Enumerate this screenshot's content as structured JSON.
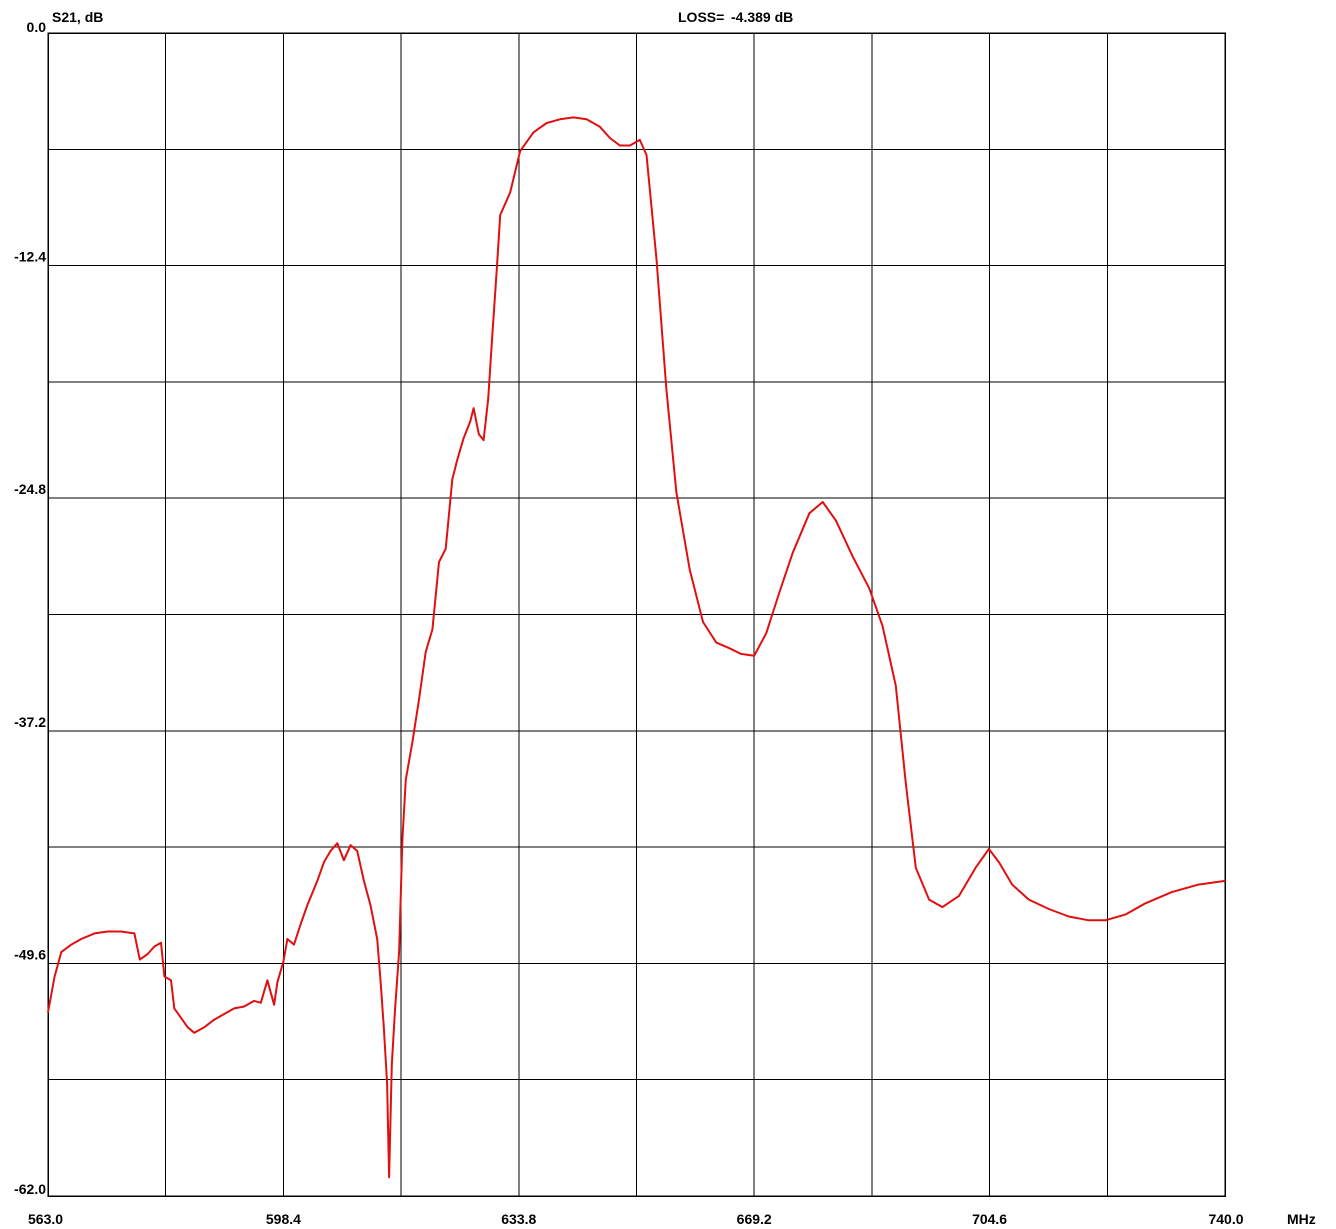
{
  "header": {
    "y_label": "S21, dB",
    "loss_label": "LOSS=",
    "loss_value": "-4.389 dB"
  },
  "chart_data": {
    "type": "line",
    "ylabel": "S21, dB",
    "xunit": "MHz",
    "xlim": [
      563.0,
      740.0
    ],
    "ylim": [
      -62.0,
      0.0
    ],
    "x_ticks": [
      "563.0",
      "598.4",
      "633.8",
      "669.2",
      "704.6",
      "740.0"
    ],
    "y_ticks": [
      "0.0",
      "-12.4",
      "-24.8",
      "-37.2",
      "-49.6",
      "-62.0"
    ],
    "x_grid_divisions": 10,
    "y_grid_divisions": 10,
    "grid": true,
    "series": [
      {
        "color": "#e01010",
        "points": [
          [
            563.0,
            -52.2
          ],
          [
            564.0,
            -50.3
          ],
          [
            565.0,
            -49.0
          ],
          [
            566.5,
            -48.6
          ],
          [
            568.0,
            -48.3
          ],
          [
            570.0,
            -48.0
          ],
          [
            572.0,
            -47.9
          ],
          [
            574.0,
            -47.9
          ],
          [
            576.0,
            -48.0
          ],
          [
            576.8,
            -49.4
          ],
          [
            578.0,
            -49.1
          ],
          [
            579.0,
            -48.7
          ],
          [
            580.0,
            -48.5
          ],
          [
            580.5,
            -50.3
          ],
          [
            581.5,
            -50.5
          ],
          [
            582.0,
            -52.0
          ],
          [
            583.0,
            -52.5
          ],
          [
            584.0,
            -53.0
          ],
          [
            585.0,
            -53.3
          ],
          [
            586.5,
            -53.0
          ],
          [
            588.0,
            -52.6
          ],
          [
            589.5,
            -52.3
          ],
          [
            591.0,
            -52.0
          ],
          [
            592.5,
            -51.9
          ],
          [
            594.0,
            -51.6
          ],
          [
            595.0,
            -51.7
          ],
          [
            596.0,
            -50.5
          ],
          [
            597.0,
            -51.8
          ],
          [
            597.5,
            -50.6
          ],
          [
            598.4,
            -49.5
          ],
          [
            599.0,
            -48.3
          ],
          [
            600.0,
            -48.6
          ],
          [
            601.0,
            -47.5
          ],
          [
            602.0,
            -46.5
          ],
          [
            603.5,
            -45.2
          ],
          [
            604.5,
            -44.2
          ],
          [
            605.5,
            -43.6
          ],
          [
            606.5,
            -43.2
          ],
          [
            607.5,
            -44.1
          ],
          [
            608.5,
            -43.3
          ],
          [
            609.5,
            -43.6
          ],
          [
            610.5,
            -45.2
          ],
          [
            611.5,
            -46.5
          ],
          [
            612.5,
            -48.3
          ],
          [
            613.0,
            -50.5
          ],
          [
            613.5,
            -53.0
          ],
          [
            614.0,
            -56.0
          ],
          [
            614.3,
            -61.0
          ],
          [
            614.7,
            -55.0
          ],
          [
            615.2,
            -52.0
          ],
          [
            615.8,
            -49.0
          ],
          [
            616.3,
            -43.0
          ],
          [
            616.8,
            -39.8
          ],
          [
            617.8,
            -37.8
          ],
          [
            618.8,
            -35.5
          ],
          [
            619.8,
            -33.0
          ],
          [
            620.8,
            -31.8
          ],
          [
            621.8,
            -28.2
          ],
          [
            622.8,
            -27.5
          ],
          [
            623.8,
            -23.8
          ],
          [
            624.5,
            -22.8
          ],
          [
            625.5,
            -21.6
          ],
          [
            626.5,
            -20.7
          ],
          [
            627.0,
            -20.0
          ],
          [
            627.8,
            -21.4
          ],
          [
            628.5,
            -21.7
          ],
          [
            629.2,
            -19.5
          ],
          [
            629.8,
            -16.2
          ],
          [
            630.5,
            -12.5
          ],
          [
            631.0,
            -9.7
          ],
          [
            632.5,
            -8.5
          ],
          [
            634.0,
            -6.3
          ],
          [
            636.0,
            -5.3
          ],
          [
            638.0,
            -4.8
          ],
          [
            640.0,
            -4.6
          ],
          [
            642.0,
            -4.5
          ],
          [
            644.0,
            -4.6
          ],
          [
            646.0,
            -5.0
          ],
          [
            647.5,
            -5.6
          ],
          [
            649.0,
            -6.0
          ],
          [
            650.5,
            -6.0
          ],
          [
            652.0,
            -5.7
          ],
          [
            653.0,
            -6.5
          ],
          [
            654.5,
            -12.0
          ],
          [
            656.0,
            -19.0
          ],
          [
            657.5,
            -24.5
          ],
          [
            659.5,
            -28.6
          ],
          [
            661.5,
            -31.4
          ],
          [
            663.5,
            -32.5
          ],
          [
            665.5,
            -32.8
          ],
          [
            667.2,
            -33.1
          ],
          [
            669.2,
            -33.2
          ],
          [
            671.0,
            -32.0
          ],
          [
            673.0,
            -29.8
          ],
          [
            675.0,
            -27.7
          ],
          [
            677.5,
            -25.6
          ],
          [
            679.5,
            -25.0
          ],
          [
            681.5,
            -26.0
          ],
          [
            684.0,
            -27.9
          ],
          [
            686.5,
            -29.6
          ],
          [
            688.5,
            -31.6
          ],
          [
            690.5,
            -34.8
          ],
          [
            692.0,
            -40.0
          ],
          [
            693.5,
            -44.5
          ],
          [
            695.5,
            -46.2
          ],
          [
            697.5,
            -46.6
          ],
          [
            700.0,
            -46.0
          ],
          [
            702.5,
            -44.5
          ],
          [
            704.5,
            -43.5
          ],
          [
            706.0,
            -44.2
          ],
          [
            708.0,
            -45.4
          ],
          [
            710.5,
            -46.2
          ],
          [
            713.5,
            -46.7
          ],
          [
            716.5,
            -47.1
          ],
          [
            719.5,
            -47.3
          ],
          [
            722.0,
            -47.3
          ],
          [
            725.0,
            -47.0
          ],
          [
            728.0,
            -46.4
          ],
          [
            732.0,
            -45.8
          ],
          [
            736.0,
            -45.4
          ],
          [
            740.0,
            -45.2
          ]
        ]
      }
    ]
  }
}
